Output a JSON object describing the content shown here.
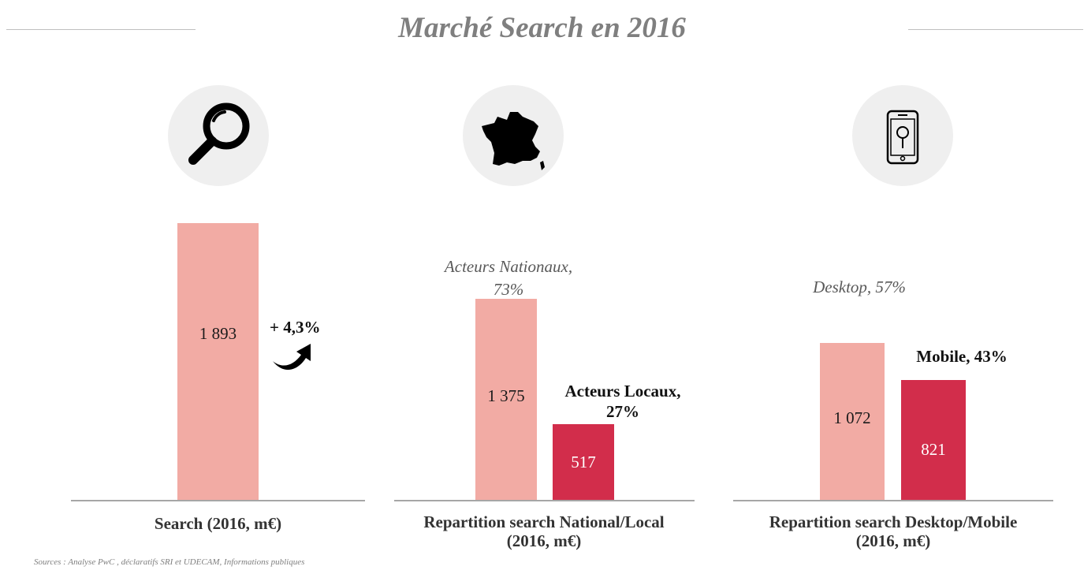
{
  "title": "Marché Search en 2016",
  "colors": {
    "light_bar": "#f2aba4",
    "dark_bar": "#d22d4b",
    "circle": "#efefef"
  },
  "icons": [
    "magnifier-icon",
    "france-map-icon",
    "smartphone-location-icon"
  ],
  "chart_data": [
    {
      "type": "bar",
      "xlabel": "Search (2016, m€)",
      "categories": [
        ""
      ],
      "values": [
        1893
      ],
      "value_labels": [
        "1 893"
      ],
      "annotation": "+ 4,3%"
    },
    {
      "type": "bar",
      "xlabel": "Repartition search National/Local (2016, m€)",
      "categories": [
        "Acteurs Nationaux, 73%",
        "Acteurs Locaux, 27%"
      ],
      "values": [
        1375,
        517
      ],
      "value_labels": [
        "1 375",
        "517"
      ],
      "cat_lines": [
        [
          "Acteurs Nationaux,",
          "73%"
        ],
        [
          "Acteurs Locaux,",
          "27%"
        ]
      ]
    },
    {
      "type": "bar",
      "xlabel": "Repartition search Desktop/Mobile (2016, m€)",
      "categories": [
        "Desktop, 57%",
        "Mobile, 43%"
      ],
      "values": [
        1072,
        821
      ],
      "value_labels": [
        "1 072",
        "821"
      ]
    }
  ],
  "labels": {
    "search_axis": "Search (2016, m€)",
    "national_axis_1": "Repartition search National/Local",
    "national_axis_2": "(2016, m€)",
    "desktop_axis_1": "Repartition search Desktop/Mobile",
    "desktop_axis_2": "(2016, m€)"
  },
  "source": "Sources : Analyse PwC , déclaratifs SRI et UDECAM, Informations publiques"
}
